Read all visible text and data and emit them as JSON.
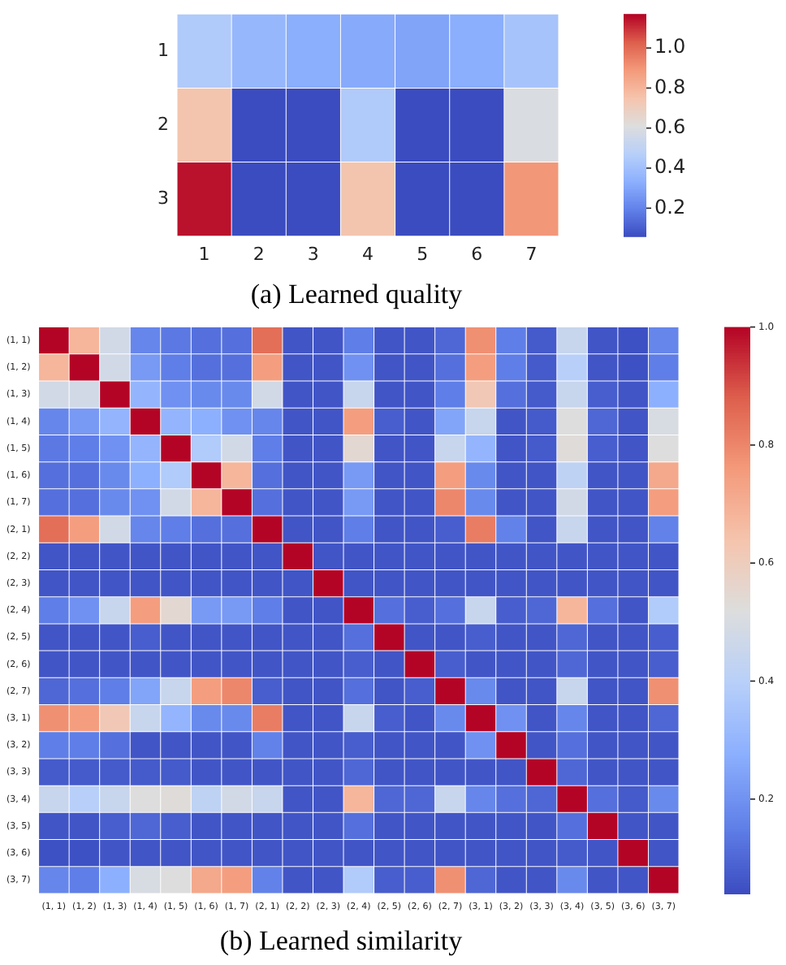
{
  "chart_data": [
    {
      "type": "heatmap",
      "title": "(a) Learned quality",
      "categories": [
        "1",
        "2",
        "3",
        "4",
        "5",
        "6",
        "7"
      ],
      "y_categories": [
        "1",
        "2",
        "3"
      ],
      "cells": [
        [
          0.45,
          0.37,
          0.33,
          0.32,
          0.3,
          0.33,
          0.42
        ],
        [
          0.75,
          0.06,
          0.06,
          0.45,
          0.06,
          0.06,
          0.6
        ],
        [
          1.15,
          0.06,
          0.06,
          0.75,
          0.06,
          0.06,
          0.9
        ]
      ],
      "clim": [
        0.06,
        1.17
      ],
      "cticks": [
        0.2,
        0.4,
        0.6,
        0.8,
        {
          "value": 1,
          "label": "1.0"
        }
      ]
    },
    {
      "type": "heatmap",
      "title": "(b) Learned similarity",
      "categories": [
        "(1, 1)",
        "(1, 2)",
        "(1, 3)",
        "(1, 4)",
        "(1, 5)",
        "(1, 6)",
        "(1, 7)",
        "(2, 1)",
        "(2, 2)",
        "(2, 3)",
        "(2, 4)",
        "(2, 5)",
        "(2, 6)",
        "(2, 7)",
        "(3, 1)",
        "(3, 2)",
        "(3, 3)",
        "(3, 4)",
        "(3, 5)",
        "(3, 6)",
        "(3, 7)"
      ],
      "y_categories": [
        "(1, 1)",
        "(1, 2)",
        "(1, 3)",
        "(1, 4)",
        "(1, 5)",
        "(1, 6)",
        "(1, 7)",
        "(2, 1)",
        "(2, 2)",
        "(2, 3)",
        "(2, 4)",
        "(2, 5)",
        "(2, 6)",
        "(2, 7)",
        "(3, 1)",
        "(3, 2)",
        "(3, 3)",
        "(3, 4)",
        "(3, 5)",
        "(3, 6)",
        "(3, 7)"
      ],
      "cells": [
        [
          1,
          0.68,
          0.48,
          0.17,
          0.14,
          0.12,
          0.12,
          0.85,
          0.06,
          0.06,
          0.15,
          0.06,
          0.06,
          0.1,
          0.78,
          0.15,
          0.07,
          0.45,
          0.06,
          0.05,
          0.17
        ],
        [
          0.68,
          1,
          0.48,
          0.22,
          0.15,
          0.12,
          0.12,
          0.75,
          0.06,
          0.06,
          0.2,
          0.06,
          0.06,
          0.12,
          0.75,
          0.15,
          0.07,
          0.4,
          0.06,
          0.05,
          0.15
        ],
        [
          0.48,
          0.48,
          1,
          0.3,
          0.2,
          0.18,
          0.18,
          0.48,
          0.06,
          0.06,
          0.45,
          0.06,
          0.06,
          0.15,
          0.62,
          0.12,
          0.07,
          0.45,
          0.08,
          0.06,
          0.28
        ],
        [
          0.17,
          0.22,
          0.3,
          1,
          0.3,
          0.28,
          0.2,
          0.17,
          0.06,
          0.06,
          0.75,
          0.08,
          0.06,
          0.25,
          0.45,
          0.06,
          0.07,
          0.52,
          0.1,
          0.06,
          0.5
        ],
        [
          0.14,
          0.15,
          0.2,
          0.3,
          1,
          0.38,
          0.48,
          0.15,
          0.06,
          0.06,
          0.55,
          0.06,
          0.06,
          0.45,
          0.3,
          0.06,
          0.07,
          0.53,
          0.08,
          0.06,
          0.52
        ],
        [
          0.12,
          0.12,
          0.18,
          0.28,
          0.38,
          1,
          0.68,
          0.12,
          0.06,
          0.06,
          0.22,
          0.06,
          0.06,
          0.75,
          0.18,
          0.06,
          0.06,
          0.42,
          0.06,
          0.06,
          0.72
        ],
        [
          0.12,
          0.12,
          0.18,
          0.2,
          0.48,
          0.68,
          1,
          0.12,
          0.06,
          0.06,
          0.22,
          0.06,
          0.06,
          0.8,
          0.18,
          0.06,
          0.06,
          0.48,
          0.06,
          0.06,
          0.75
        ],
        [
          0.85,
          0.75,
          0.48,
          0.17,
          0.15,
          0.12,
          0.12,
          1,
          0.06,
          0.06,
          0.15,
          0.06,
          0.06,
          0.08,
          0.82,
          0.16,
          0.06,
          0.45,
          0.06,
          0.06,
          0.16
        ],
        [
          0.06,
          0.06,
          0.06,
          0.06,
          0.06,
          0.06,
          0.06,
          0.06,
          1,
          0.06,
          0.06,
          0.06,
          0.06,
          0.06,
          0.06,
          0.06,
          0.06,
          0.06,
          0.06,
          0.06,
          0.06
        ],
        [
          0.06,
          0.06,
          0.06,
          0.06,
          0.06,
          0.06,
          0.06,
          0.06,
          0.06,
          1,
          0.06,
          0.06,
          0.06,
          0.06,
          0.06,
          0.06,
          0.06,
          0.06,
          0.06,
          0.06,
          0.06
        ],
        [
          0.15,
          0.2,
          0.45,
          0.75,
          0.55,
          0.22,
          0.22,
          0.15,
          0.06,
          0.06,
          1,
          0.12,
          0.08,
          0.12,
          0.45,
          0.08,
          0.1,
          0.68,
          0.12,
          0.06,
          0.38
        ],
        [
          0.06,
          0.06,
          0.06,
          0.08,
          0.06,
          0.06,
          0.06,
          0.06,
          0.06,
          0.06,
          0.12,
          1,
          0.06,
          0.06,
          0.08,
          0.06,
          0.06,
          0.1,
          0.06,
          0.06,
          0.08
        ],
        [
          0.06,
          0.06,
          0.06,
          0.06,
          0.06,
          0.06,
          0.06,
          0.06,
          0.06,
          0.06,
          0.08,
          0.06,
          1,
          0.08,
          0.06,
          0.06,
          0.06,
          0.1,
          0.06,
          0.06,
          0.08
        ],
        [
          0.1,
          0.12,
          0.15,
          0.25,
          0.45,
          0.75,
          0.8,
          0.08,
          0.06,
          0.06,
          0.12,
          0.06,
          0.08,
          1,
          0.18,
          0.06,
          0.06,
          0.45,
          0.06,
          0.06,
          0.78
        ],
        [
          0.78,
          0.75,
          0.62,
          0.45,
          0.3,
          0.18,
          0.18,
          0.82,
          0.06,
          0.06,
          0.45,
          0.08,
          0.06,
          0.18,
          1,
          0.2,
          0.06,
          0.17,
          0.06,
          0.06,
          0.1
        ],
        [
          0.15,
          0.15,
          0.12,
          0.06,
          0.06,
          0.06,
          0.06,
          0.16,
          0.06,
          0.06,
          0.08,
          0.06,
          0.06,
          0.06,
          0.2,
          1,
          0.06,
          0.12,
          0.06,
          0.06,
          0.06
        ],
        [
          0.07,
          0.07,
          0.07,
          0.07,
          0.07,
          0.06,
          0.06,
          0.06,
          0.06,
          0.06,
          0.1,
          0.06,
          0.06,
          0.06,
          0.06,
          0.06,
          1,
          0.1,
          0.06,
          0.06,
          0.06
        ],
        [
          0.45,
          0.4,
          0.45,
          0.52,
          0.53,
          0.42,
          0.48,
          0.45,
          0.06,
          0.06,
          0.68,
          0.1,
          0.1,
          0.45,
          0.17,
          0.12,
          0.1,
          1,
          0.12,
          0.07,
          0.18
        ],
        [
          0.06,
          0.06,
          0.08,
          0.1,
          0.08,
          0.06,
          0.06,
          0.06,
          0.06,
          0.06,
          0.12,
          0.06,
          0.06,
          0.06,
          0.06,
          0.06,
          0.06,
          0.12,
          1,
          0.06,
          0.06
        ],
        [
          0.05,
          0.05,
          0.06,
          0.06,
          0.06,
          0.06,
          0.06,
          0.06,
          0.06,
          0.06,
          0.06,
          0.06,
          0.06,
          0.06,
          0.06,
          0.06,
          0.06,
          0.07,
          0.06,
          1,
          0.06
        ],
        [
          0.17,
          0.15,
          0.28,
          0.5,
          0.52,
          0.72,
          0.75,
          0.16,
          0.06,
          0.06,
          0.38,
          0.08,
          0.08,
          0.78,
          0.1,
          0.06,
          0.06,
          0.18,
          0.06,
          0.06,
          1
        ]
      ],
      "clim": [
        0.04,
        1.0
      ],
      "cticks": [
        0.2,
        0.4,
        0.6,
        0.8,
        {
          "value": 1,
          "label": "1.0"
        }
      ]
    }
  ]
}
